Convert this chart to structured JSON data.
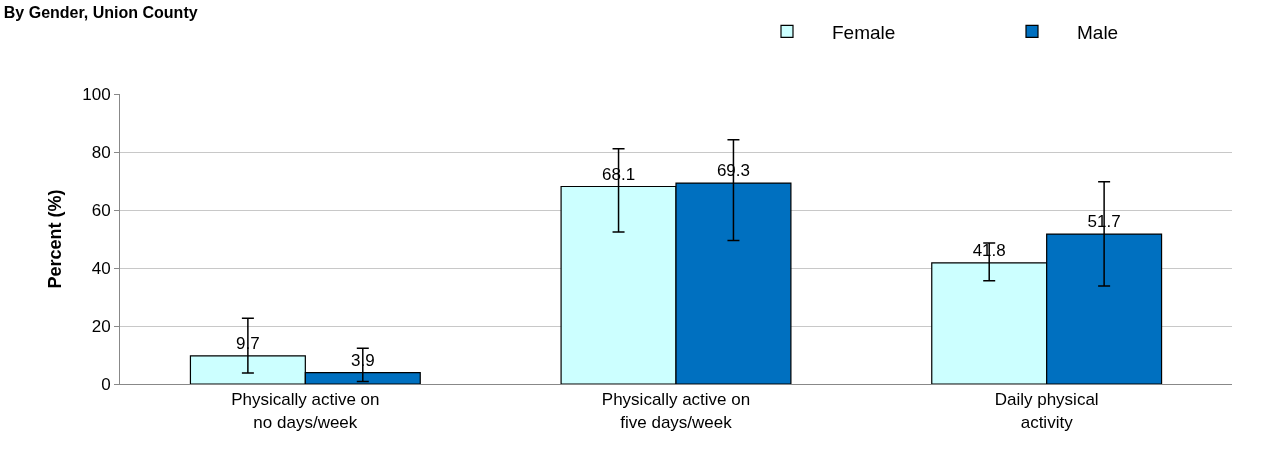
{
  "chart_data": {
    "type": "bar",
    "title": "By Gender, Union County",
    "ylabel": "Percent (%)",
    "categories": [
      "Physically active on\nno days/week",
      "Physically active on\nfive days/week",
      "Daily physical\nactivity"
    ],
    "series": [
      {
        "name": "Female",
        "color": "#ccffff",
        "values": [
          9.7,
          68.1,
          41.8
        ],
        "errors": [
          [
            3.8,
            22.7
          ],
          [
            52.4,
            81.1
          ],
          [
            35.6,
            48.6
          ]
        ]
      },
      {
        "name": "Male",
        "color": "#0070c0",
        "values": [
          3.9,
          69.3,
          51.7
        ],
        "errors": [
          [
            0.9,
            12.3
          ],
          [
            49.5,
            84.2
          ],
          [
            33.8,
            69.7
          ]
        ]
      }
    ],
    "ylim": [
      0,
      100
    ],
    "yticks": [
      0,
      20,
      40,
      60,
      80,
      100
    ],
    "grid": "y",
    "legend": "top right",
    "data_labels": true
  }
}
